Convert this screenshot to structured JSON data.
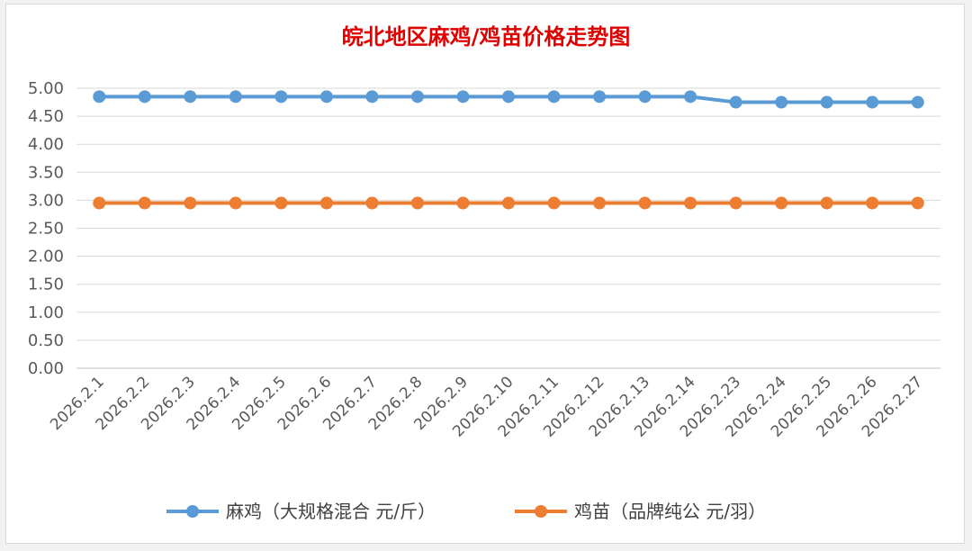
{
  "chart_data": {
    "type": "line",
    "title": "皖北地区麻鸡/鸡苗价格走势图",
    "title_color": "#e00000",
    "categories": [
      "2026.2.1",
      "2026.2.2",
      "2026.2.3",
      "2026.2.4",
      "2026.2.5",
      "2026.2.6",
      "2026.2.7",
      "2026.2.8",
      "2026.2.9",
      "2026.2.10",
      "2026.2.11",
      "2026.2.12",
      "2026.2.13",
      "2026.2.14",
      "2026.2.23",
      "2026.2.24",
      "2026.2.25",
      "2026.2.26",
      "2026.2.27"
    ],
    "series": [
      {
        "name": "麻鸡（大规格混合 元/斤）",
        "color": "#5b9bd5",
        "values": [
          4.85,
          4.85,
          4.85,
          4.85,
          4.85,
          4.85,
          4.85,
          4.85,
          4.85,
          4.85,
          4.85,
          4.85,
          4.85,
          4.85,
          4.75,
          4.75,
          4.75,
          4.75,
          4.75
        ]
      },
      {
        "name": "鸡苗（品牌纯公 元/羽）",
        "color": "#ed7d31",
        "values": [
          2.95,
          2.95,
          2.95,
          2.95,
          2.95,
          2.95,
          2.95,
          2.95,
          2.95,
          2.95,
          2.95,
          2.95,
          2.95,
          2.95,
          2.95,
          2.95,
          2.95,
          2.95,
          2.95
        ]
      }
    ],
    "y_ticks": [
      "0.00",
      "0.50",
      "1.00",
      "1.50",
      "2.00",
      "2.50",
      "3.00",
      "3.50",
      "4.00",
      "4.50",
      "5.00"
    ],
    "ylim": [
      0,
      5
    ],
    "grid": true,
    "legend_position": "bottom"
  }
}
